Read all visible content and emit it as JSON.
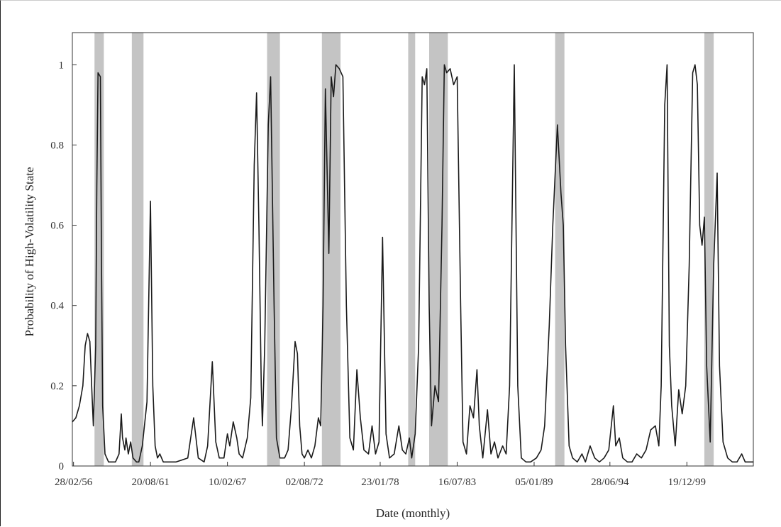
{
  "chart_data": {
    "type": "line",
    "xlabel": "Date (monthly)",
    "ylabel": "Probability of High-Volatility State",
    "ylim": [
      0,
      1.08
    ],
    "grid": false,
    "x_start": "1956-01",
    "x_end": "2004-09",
    "x_ticks": [
      {
        "label": "28/02/56",
        "date": "1956-02"
      },
      {
        "label": "20/08/61",
        "date": "1961-08"
      },
      {
        "label": "10/02/67",
        "date": "1967-02"
      },
      {
        "label": "02/08/72",
        "date": "1972-08"
      },
      {
        "label": "23/01/78",
        "date": "1978-01"
      },
      {
        "label": "16/07/83",
        "date": "1983-07"
      },
      {
        "label": "05/01/89",
        "date": "1989-01"
      },
      {
        "label": "28/06/94",
        "date": "1994-06"
      },
      {
        "label": "19/12/99",
        "date": "1999-12"
      }
    ],
    "y_ticks": [
      {
        "label": "0",
        "value": 0
      },
      {
        "label": "0.2",
        "value": 0.2
      },
      {
        "label": "0.4",
        "value": 0.4
      },
      {
        "label": "0.6",
        "value": 0.6
      },
      {
        "label": "0.8",
        "value": 0.8
      },
      {
        "label": "1",
        "value": 1
      }
    ],
    "shaded_periods": [
      {
        "start": "1957-08",
        "end": "1958-04"
      },
      {
        "start": "1960-04",
        "end": "1961-02"
      },
      {
        "start": "1969-12",
        "end": "1970-11"
      },
      {
        "start": "1973-11",
        "end": "1975-03"
      },
      {
        "start": "1980-01",
        "end": "1980-07"
      },
      {
        "start": "1981-07",
        "end": "1982-11"
      },
      {
        "start": "1990-07",
        "end": "1991-03"
      },
      {
        "start": "2001-03",
        "end": "2001-11"
      }
    ],
    "band_color": "#c4c4c4",
    "line_color": "#1a1a1a",
    "series": [
      {
        "points": [
          [
            "1956-01",
            0.11
          ],
          [
            "1956-04",
            0.12
          ],
          [
            "1956-07",
            0.15
          ],
          [
            "1956-10",
            0.2
          ],
          [
            "1956-12",
            0.3
          ],
          [
            "1957-02",
            0.33
          ],
          [
            "1957-04",
            0.31
          ],
          [
            "1957-06",
            0.17
          ],
          [
            "1957-07",
            0.1
          ],
          [
            "1957-09",
            0.3
          ],
          [
            "1957-10",
            0.7
          ],
          [
            "1957-11",
            0.98
          ],
          [
            "1958-01",
            0.97
          ],
          [
            "1958-02",
            0.5
          ],
          [
            "1958-03",
            0.15
          ],
          [
            "1958-05",
            0.03
          ],
          [
            "1958-08",
            0.01
          ],
          [
            "1959-02",
            0.01
          ],
          [
            "1959-05",
            0.03
          ],
          [
            "1959-07",
            0.13
          ],
          [
            "1959-08",
            0.07
          ],
          [
            "1959-10",
            0.04
          ],
          [
            "1959-11",
            0.07
          ],
          [
            "1960-01",
            0.03
          ],
          [
            "1960-03",
            0.06
          ],
          [
            "1960-05",
            0.02
          ],
          [
            "1960-08",
            0.01
          ],
          [
            "1960-10",
            0.01
          ],
          [
            "1961-01",
            0.05
          ],
          [
            "1961-05",
            0.16
          ],
          [
            "1961-08",
            0.66
          ],
          [
            "1961-10",
            0.2
          ],
          [
            "1961-12",
            0.05
          ],
          [
            "1962-02",
            0.02
          ],
          [
            "1962-04",
            0.03
          ],
          [
            "1962-07",
            0.01
          ],
          [
            "1963-06",
            0.01
          ],
          [
            "1964-04",
            0.02
          ],
          [
            "1964-09",
            0.12
          ],
          [
            "1965-01",
            0.02
          ],
          [
            "1965-06",
            0.01
          ],
          [
            "1965-09",
            0.05
          ],
          [
            "1966-01",
            0.26
          ],
          [
            "1966-04",
            0.06
          ],
          [
            "1966-07",
            0.02
          ],
          [
            "1966-11",
            0.02
          ],
          [
            "1967-02",
            0.08
          ],
          [
            "1967-04",
            0.05
          ],
          [
            "1967-07",
            0.11
          ],
          [
            "1967-10",
            0.07
          ],
          [
            "1967-12",
            0.03
          ],
          [
            "1968-03",
            0.02
          ],
          [
            "1968-07",
            0.07
          ],
          [
            "1968-10",
            0.17
          ],
          [
            "1969-01",
            0.75
          ],
          [
            "1969-03",
            0.93
          ],
          [
            "1969-05",
            0.6
          ],
          [
            "1969-07",
            0.2
          ],
          [
            "1969-08",
            0.1
          ],
          [
            "1969-10",
            0.3
          ],
          [
            "1970-01",
            0.85
          ],
          [
            "1970-03",
            0.97
          ],
          [
            "1970-06",
            0.4
          ],
          [
            "1970-08",
            0.07
          ],
          [
            "1970-11",
            0.02
          ],
          [
            "1971-03",
            0.02
          ],
          [
            "1971-06",
            0.04
          ],
          [
            "1971-09",
            0.15
          ],
          [
            "1971-12",
            0.31
          ],
          [
            "1972-02",
            0.28
          ],
          [
            "1972-04",
            0.1
          ],
          [
            "1972-06",
            0.03
          ],
          [
            "1972-08",
            0.02
          ],
          [
            "1972-11",
            0.04
          ],
          [
            "1973-02",
            0.02
          ],
          [
            "1973-05",
            0.05
          ],
          [
            "1973-08",
            0.12
          ],
          [
            "1973-10",
            0.1
          ],
          [
            "1973-12",
            0.4
          ],
          [
            "1974-02",
            0.94
          ],
          [
            "1974-05",
            0.53
          ],
          [
            "1974-07",
            0.97
          ],
          [
            "1974-09",
            0.92
          ],
          [
            "1974-11",
            1.0
          ],
          [
            "1975-02",
            0.99
          ],
          [
            "1975-05",
            0.97
          ],
          [
            "1975-08",
            0.4
          ],
          [
            "1975-11",
            0.07
          ],
          [
            "1976-02",
            0.04
          ],
          [
            "1976-05",
            0.24
          ],
          [
            "1976-08",
            0.12
          ],
          [
            "1976-11",
            0.04
          ],
          [
            "1977-03",
            0.03
          ],
          [
            "1977-06",
            0.1
          ],
          [
            "1977-09",
            0.03
          ],
          [
            "1977-12",
            0.06
          ],
          [
            "1978-03",
            0.57
          ],
          [
            "1978-06",
            0.08
          ],
          [
            "1978-09",
            0.02
          ],
          [
            "1979-01",
            0.03
          ],
          [
            "1979-05",
            0.1
          ],
          [
            "1979-08",
            0.04
          ],
          [
            "1979-11",
            0.03
          ],
          [
            "1980-02",
            0.07
          ],
          [
            "1980-04",
            0.02
          ],
          [
            "1980-07",
            0.08
          ],
          [
            "1980-10",
            0.3
          ],
          [
            "1981-01",
            0.97
          ],
          [
            "1981-03",
            0.95
          ],
          [
            "1981-05",
            0.99
          ],
          [
            "1981-07",
            0.4
          ],
          [
            "1981-09",
            0.1
          ],
          [
            "1981-12",
            0.2
          ],
          [
            "1982-03",
            0.16
          ],
          [
            "1982-06",
            0.6
          ],
          [
            "1982-08",
            1.0
          ],
          [
            "1982-10",
            0.98
          ],
          [
            "1983-01",
            0.99
          ],
          [
            "1983-04",
            0.95
          ],
          [
            "1983-07",
            0.97
          ],
          [
            "1983-10",
            0.4
          ],
          [
            "1983-12",
            0.06
          ],
          [
            "1984-03",
            0.03
          ],
          [
            "1984-06",
            0.15
          ],
          [
            "1984-09",
            0.12
          ],
          [
            "1984-12",
            0.24
          ],
          [
            "1985-02",
            0.1
          ],
          [
            "1985-05",
            0.02
          ],
          [
            "1985-09",
            0.14
          ],
          [
            "1985-12",
            0.03
          ],
          [
            "1986-03",
            0.06
          ],
          [
            "1986-06",
            0.02
          ],
          [
            "1986-10",
            0.05
          ],
          [
            "1987-01",
            0.03
          ],
          [
            "1987-04",
            0.2
          ],
          [
            "1987-08",
            1.0
          ],
          [
            "1987-11",
            0.2
          ],
          [
            "1988-02",
            0.02
          ],
          [
            "1988-06",
            0.01
          ],
          [
            "1988-10",
            0.01
          ],
          [
            "1989-03",
            0.02
          ],
          [
            "1989-07",
            0.04
          ],
          [
            "1989-10",
            0.1
          ],
          [
            "1990-02",
            0.35
          ],
          [
            "1990-05",
            0.6
          ],
          [
            "1990-09",
            0.85
          ],
          [
            "1990-12",
            0.68
          ],
          [
            "1991-02",
            0.6
          ],
          [
            "1991-04",
            0.3
          ],
          [
            "1991-07",
            0.05
          ],
          [
            "1991-10",
            0.02
          ],
          [
            "1992-02",
            0.01
          ],
          [
            "1992-06",
            0.03
          ],
          [
            "1992-09",
            0.01
          ],
          [
            "1993-01",
            0.05
          ],
          [
            "1993-05",
            0.02
          ],
          [
            "1993-09",
            0.01
          ],
          [
            "1994-01",
            0.02
          ],
          [
            "1994-05",
            0.04
          ],
          [
            "1994-09",
            0.15
          ],
          [
            "1994-11",
            0.05
          ],
          [
            "1995-02",
            0.07
          ],
          [
            "1995-05",
            0.02
          ],
          [
            "1995-09",
            0.01
          ],
          [
            "1996-01",
            0.01
          ],
          [
            "1996-05",
            0.03
          ],
          [
            "1996-09",
            0.02
          ],
          [
            "1997-01",
            0.04
          ],
          [
            "1997-05",
            0.09
          ],
          [
            "1997-09",
            0.1
          ],
          [
            "1997-12",
            0.05
          ],
          [
            "1998-02",
            0.2
          ],
          [
            "1998-05",
            0.9
          ],
          [
            "1998-07",
            1.0
          ],
          [
            "1998-09",
            0.3
          ],
          [
            "1998-11",
            0.15
          ],
          [
            "1999-02",
            0.05
          ],
          [
            "1999-05",
            0.19
          ],
          [
            "1999-08",
            0.13
          ],
          [
            "1999-11",
            0.2
          ],
          [
            "2000-02",
            0.5
          ],
          [
            "2000-05",
            0.98
          ],
          [
            "2000-07",
            1.0
          ],
          [
            "2000-09",
            0.95
          ],
          [
            "2000-11",
            0.6
          ],
          [
            "2001-01",
            0.55
          ],
          [
            "2001-03",
            0.62
          ],
          [
            "2001-05",
            0.25
          ],
          [
            "2001-08",
            0.06
          ],
          [
            "2001-11",
            0.5
          ],
          [
            "2002-02",
            0.73
          ],
          [
            "2002-04",
            0.25
          ],
          [
            "2002-07",
            0.06
          ],
          [
            "2002-11",
            0.02
          ],
          [
            "2003-03",
            0.01
          ],
          [
            "2003-07",
            0.01
          ],
          [
            "2003-11",
            0.03
          ],
          [
            "2004-02",
            0.01
          ],
          [
            "2004-06",
            0.01
          ],
          [
            "2004-09",
            0.01
          ]
        ]
      }
    ]
  }
}
